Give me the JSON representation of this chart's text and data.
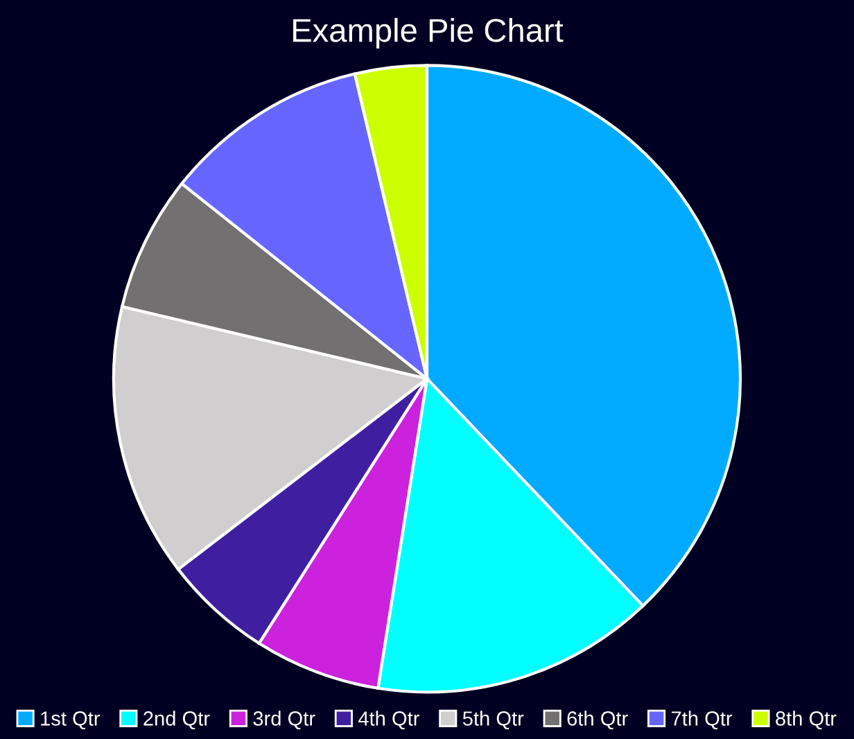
{
  "chart_data": {
    "type": "pie",
    "title": "Example Pie Chart",
    "categories": [
      "1st Qtr",
      "2nd Qtr",
      "3rd Qtr",
      "4th Qtr",
      "5th Qtr",
      "6th Qtr",
      "7th Qtr",
      "8th Qtr"
    ],
    "values": [
      37.9,
      14.6,
      6.5,
      5.6,
      14.1,
      7.0,
      10.6,
      3.7
    ],
    "colors": [
      "#00aaff",
      "#00ffff",
      "#cc22dd",
      "#3f1fa0",
      "#d0cece",
      "#727070",
      "#6666ff",
      "#ccff00"
    ],
    "legend": "bottom"
  }
}
